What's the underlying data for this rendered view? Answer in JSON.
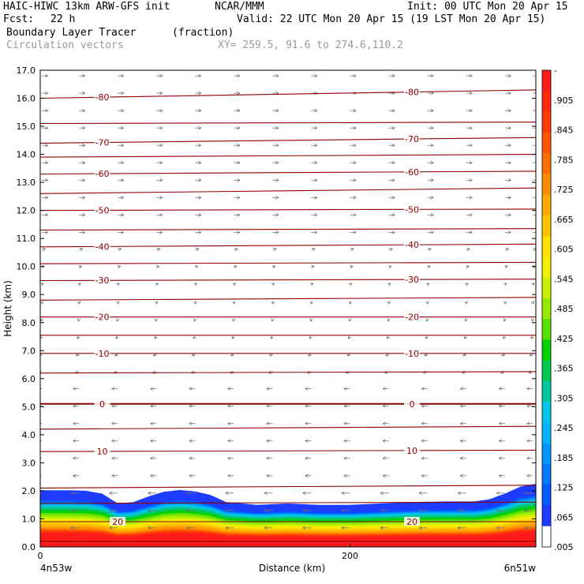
{
  "header": {
    "model": "HAIC-HIWC 13km ARW-GFS init",
    "org": "NCAR/MMM",
    "init": "Init: 00 UTC Mon 20 Apr 15",
    "fcst_label": "Fcst:",
    "fcst_value": "22 h",
    "valid": "Valid: 22 UTC Mon 20 Apr 15 (19 LST Mon 20 Apr 15)",
    "field": "Boundary Layer Tracer",
    "units": "(fraction)",
    "vectors": "Circulation vectors",
    "xy": "XY= 259.5, 91.6 to 274.6,110.2"
  },
  "chart_data": {
    "type": "area",
    "xlabel": "Distance (km)",
    "ylabel": "Height (km)",
    "xlim": [
      0,
      320
    ],
    "ylim": [
      0,
      17
    ],
    "x_ticks": [
      "0",
      "200"
    ],
    "x_tick_values": [
      0,
      200
    ],
    "x_endpoints": {
      "left": "4n53w",
      "right": "6n51w"
    },
    "y_ticks": [
      "0.0",
      "1.0",
      "2.0",
      "3.0",
      "4.0",
      "5.0",
      "6.0",
      "7.0",
      "8.0",
      "9.0",
      "10.0",
      "11.0",
      "12.0",
      "13.0",
      "14.0",
      "15.0",
      "16.0",
      "17.0"
    ],
    "colorbar": {
      "labels": [
        "-",
        ".905",
        ".845",
        ".785",
        ".725",
        ".665",
        ".605",
        ".545",
        ".485",
        ".425",
        ".365",
        ".305",
        ".245",
        ".185",
        ".125",
        ".065",
        ".005"
      ],
      "colors": [
        "#ff1a1a",
        "#ff2a10",
        "#ff3c08",
        "#ff5500",
        "#ff7000",
        "#ff8c00",
        "#ffa800",
        "#ffc400",
        "#ffe000",
        "#f0f000",
        "#c8f000",
        "#96eb00",
        "#5ae100",
        "#00d200",
        "#00c850",
        "#00c8a0",
        "#00c8e6",
        "#00b4ff",
        "#0096ff",
        "#0078ff",
        "#005aff",
        "#1e3cff",
        "#ffffff"
      ]
    },
    "tracer_top": {
      "x": [
        0,
        20,
        30,
        40,
        50,
        60,
        70,
        80,
        90,
        100,
        110,
        120,
        140,
        160,
        180,
        200,
        220,
        240,
        260,
        280,
        290,
        300,
        310,
        320
      ],
      "y": [
        2.02,
        2.02,
        2.0,
        1.9,
        1.55,
        1.6,
        1.8,
        1.97,
        2.03,
        1.98,
        1.85,
        1.6,
        1.5,
        1.55,
        1.5,
        1.5,
        1.55,
        1.6,
        1.62,
        1.62,
        1.7,
        1.9,
        2.15,
        2.25
      ]
    },
    "isotherms": [
      {
        "label": "-80",
        "y": 16.0,
        "slope": 0.3
      },
      {
        "label": "",
        "y": 15.1,
        "slope": 0.05
      },
      {
        "label": "-70",
        "y": 14.4,
        "slope": 0.2
      },
      {
        "label": "",
        "y": 13.9,
        "slope": 0.1
      },
      {
        "label": "-60",
        "y": 13.3,
        "slope": 0.1
      },
      {
        "label": "",
        "y": 12.6,
        "slope": 0.2
      },
      {
        "label": "-50",
        "y": 12.0,
        "slope": 0.05
      },
      {
        "label": "",
        "y": 11.3,
        "slope": 0.05
      },
      {
        "label": "-40",
        "y": 10.7,
        "slope": 0.1
      },
      {
        "label": "",
        "y": 10.1,
        "slope": 0.05
      },
      {
        "label": "-30",
        "y": 9.5,
        "slope": 0.05
      },
      {
        "label": "",
        "y": 8.8,
        "slope": 0.1
      },
      {
        "label": "-20",
        "y": 8.2,
        "slope": 0.0
      },
      {
        "label": "",
        "y": 7.55,
        "slope": 0.0
      },
      {
        "label": "-10",
        "y": 6.9,
        "slope": 0.0
      },
      {
        "label": "",
        "y": 6.2,
        "slope": 0.05
      },
      {
        "label": "0",
        "y": 5.1,
        "slope": 0.0
      },
      {
        "label": "",
        "y": 4.2,
        "slope": 0.1
      },
      {
        "label": "10",
        "y": 3.4,
        "slope": 0.05
      },
      {
        "label": "",
        "y": 2.1,
        "slope": 0.1
      },
      {
        "label": "",
        "y": 1.55,
        "slope": 0.05
      },
      {
        "label": "20",
        "y": 0.9,
        "slope": 0.0
      },
      {
        "label": "",
        "y": 0.2,
        "slope": 0.0
      }
    ]
  }
}
